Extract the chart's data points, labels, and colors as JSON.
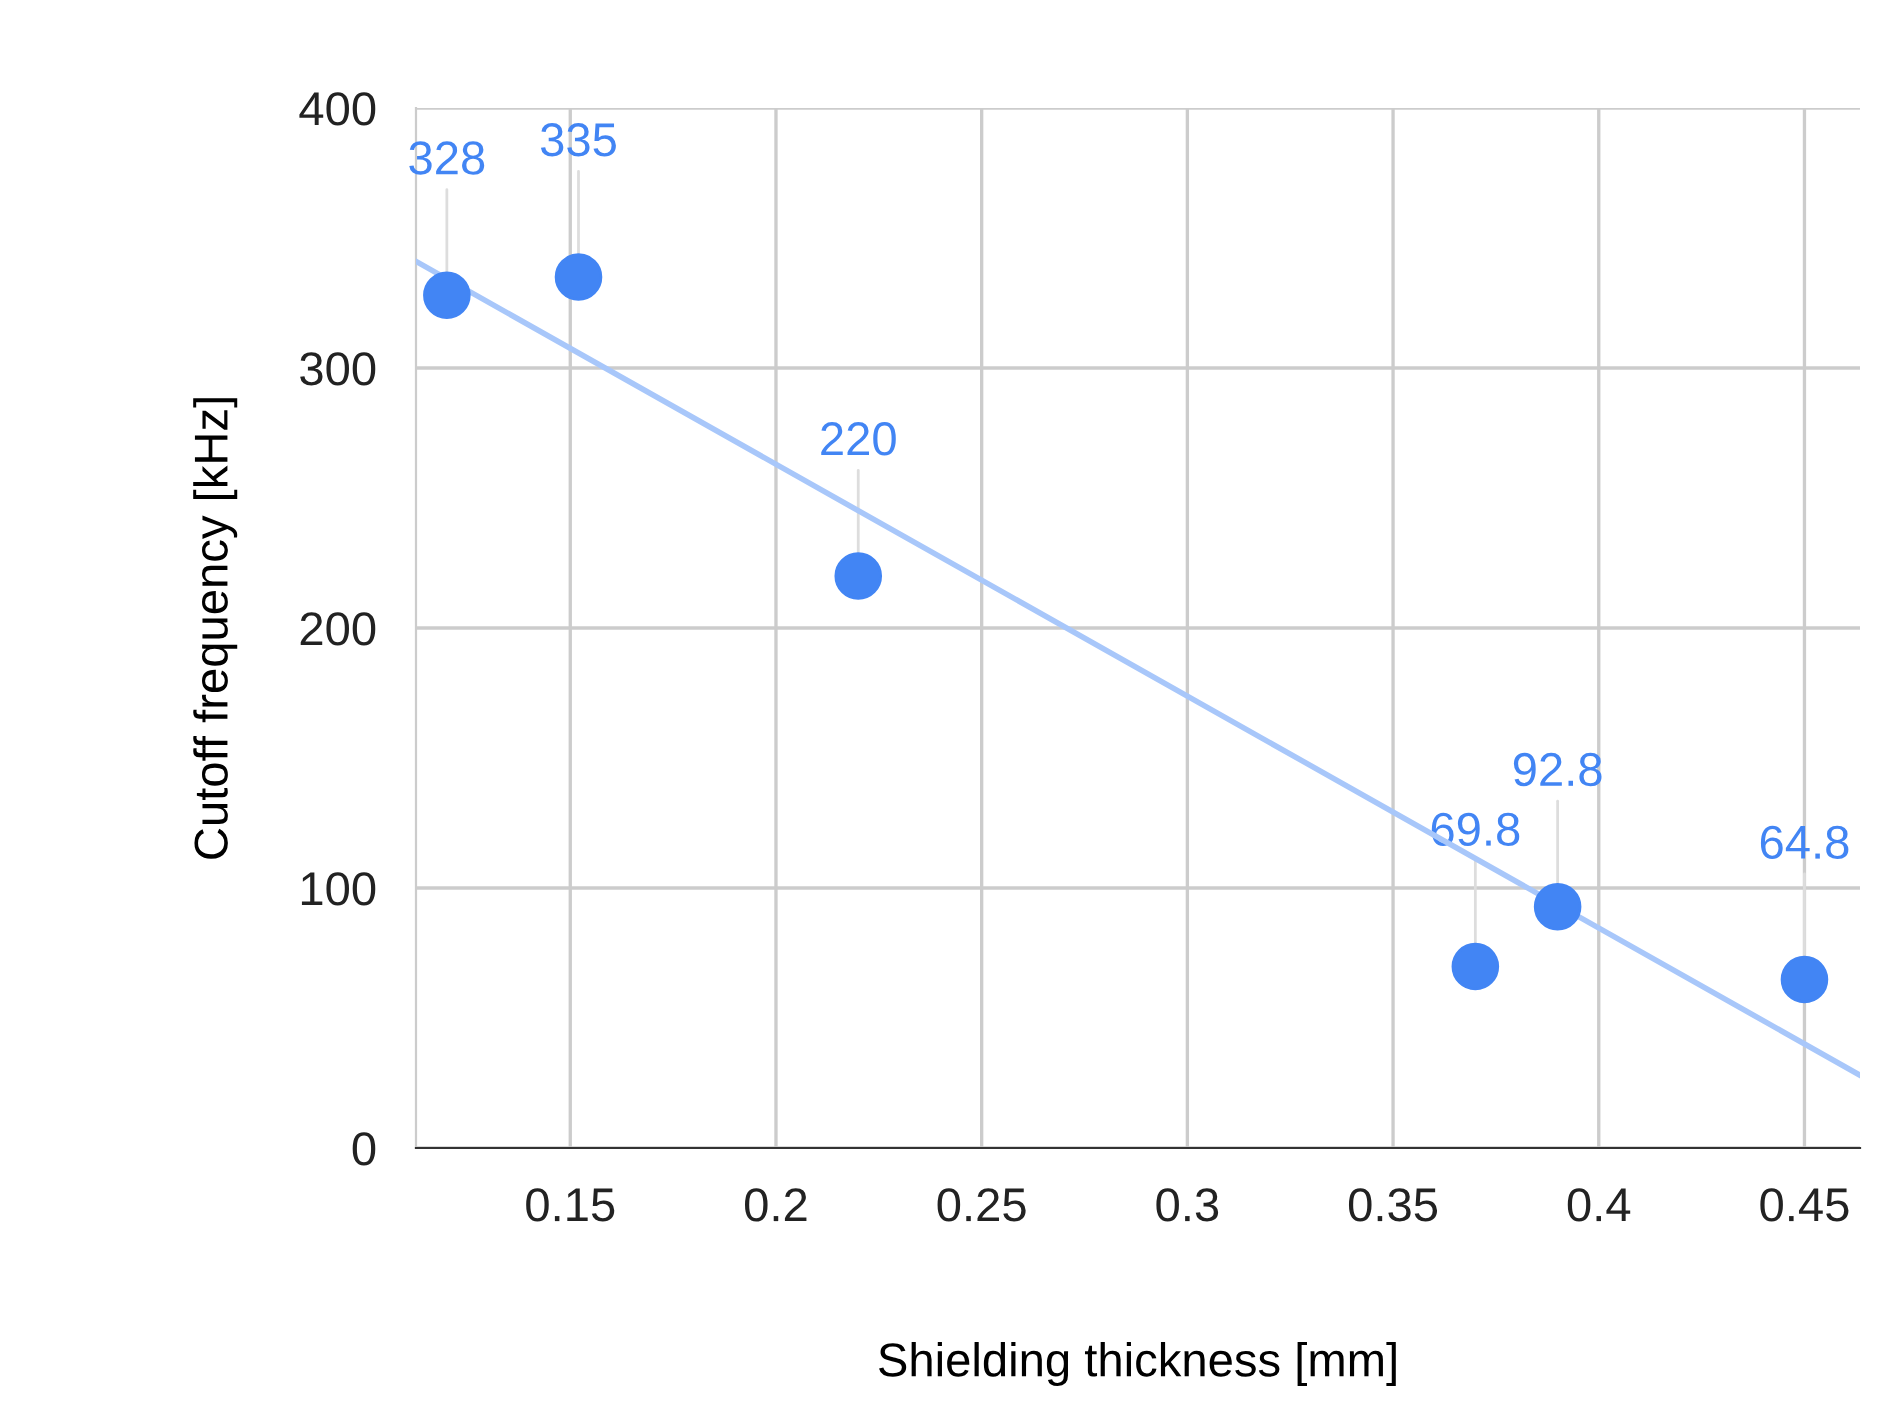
{
  "chart_data": {
    "type": "scatter",
    "xlabel": "Shielding thickness [mm]",
    "ylabel": "Cutoff frequency [kHz]",
    "xlim": [
      0.1125,
      0.4635
    ],
    "ylim": [
      0,
      400
    ],
    "xticks": [
      0.15,
      0.2,
      0.25,
      0.3,
      0.35,
      0.4,
      0.45
    ],
    "yticks": [
      0,
      100,
      200,
      300,
      400
    ],
    "grid": true,
    "series": [
      {
        "color": "#4285f4",
        "marker": "circle",
        "x": [
          0.12,
          0.152,
          0.22,
          0.37,
          0.39,
          0.45
        ],
        "values": [
          328,
          335,
          220,
          69.8,
          92.8,
          64.8
        ],
        "value_labels": [
          "328",
          "335",
          "220",
          "69.8",
          "92.8",
          "64.8"
        ]
      },
      {
        "type": "line",
        "marker": "none",
        "color": "#a8c7fa",
        "x": [
          0.1125,
          0.4635
        ],
        "values": [
          341,
          28
        ]
      }
    ]
  }
}
